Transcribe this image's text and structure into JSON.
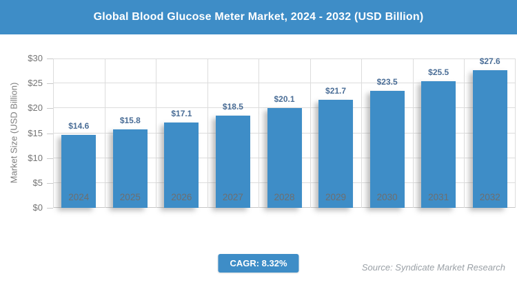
{
  "title_bar": {
    "title": "Global Blood Glucose Meter Market, 2024 - 2032 (USD Billion)"
  },
  "colors": {
    "accent_blue": "#3e8dc7",
    "bar_fill": "#3e8dc7",
    "data_label_text": "#4a6d96",
    "gridline": "#dcdcdc",
    "axis_tick_text": "#757575",
    "x_axis_text": "#6e6e6e",
    "axis_title_text": "#7f7f7f",
    "source_text": "#9aa0a6",
    "title_text": "#ffffff"
  },
  "chart_data": {
    "type": "bar",
    "title": "Global Blood Glucose Meter Market, 2024 - 2032 (USD Billion)",
    "categories": [
      "2024",
      "2025",
      "2026",
      "2027",
      "2028",
      "2029",
      "2030",
      "2031",
      "2032"
    ],
    "values": [
      14.6,
      15.8,
      17.1,
      18.5,
      20.1,
      21.7,
      23.5,
      25.5,
      27.6
    ],
    "data_labels": [
      "$14.6",
      "$15.8",
      "$17.1",
      "$18.5",
      "$20.1",
      "$21.7",
      "$23.5",
      "$25.5",
      "$27.6"
    ],
    "xlabel": "",
    "ylabel": "Market Size (USD Billion)",
    "ylim": [
      0,
      30
    ],
    "ytick_step": 5,
    "ytick_labels": [
      "$0",
      "$5",
      "$10",
      "$15",
      "$20",
      "$25",
      "$30"
    ],
    "grid": true,
    "legend": false,
    "bar_color": "#3e8dc7"
  },
  "footer": {
    "cagr_label": "CAGR: 8.32%",
    "source": "Source: Syndicate Market Research"
  }
}
